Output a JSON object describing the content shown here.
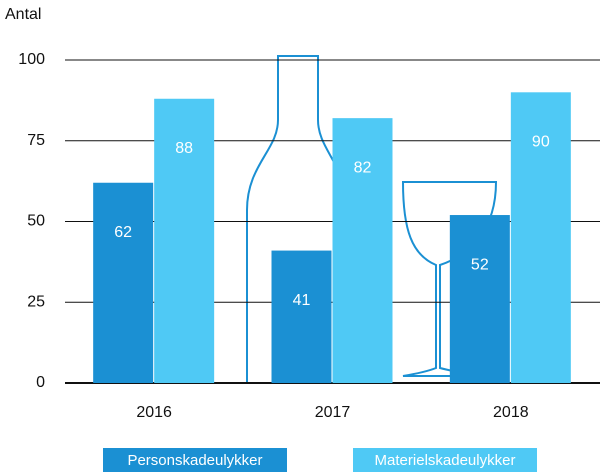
{
  "chart_data": {
    "type": "bar",
    "y_label": "Antal",
    "categories": [
      "2016",
      "2017",
      "2018"
    ],
    "series": [
      {
        "name": "Personskadeulykker",
        "color": "#1b90d3",
        "values": [
          62,
          41,
          52
        ]
      },
      {
        "name": "Materielskadeulykker",
        "color": "#4fc9f5",
        "values": [
          88,
          82,
          90
        ]
      }
    ],
    "ylim": [
      0,
      100
    ],
    "yticks": [
      0,
      25,
      50,
      75,
      100
    ],
    "grid": true
  }
}
